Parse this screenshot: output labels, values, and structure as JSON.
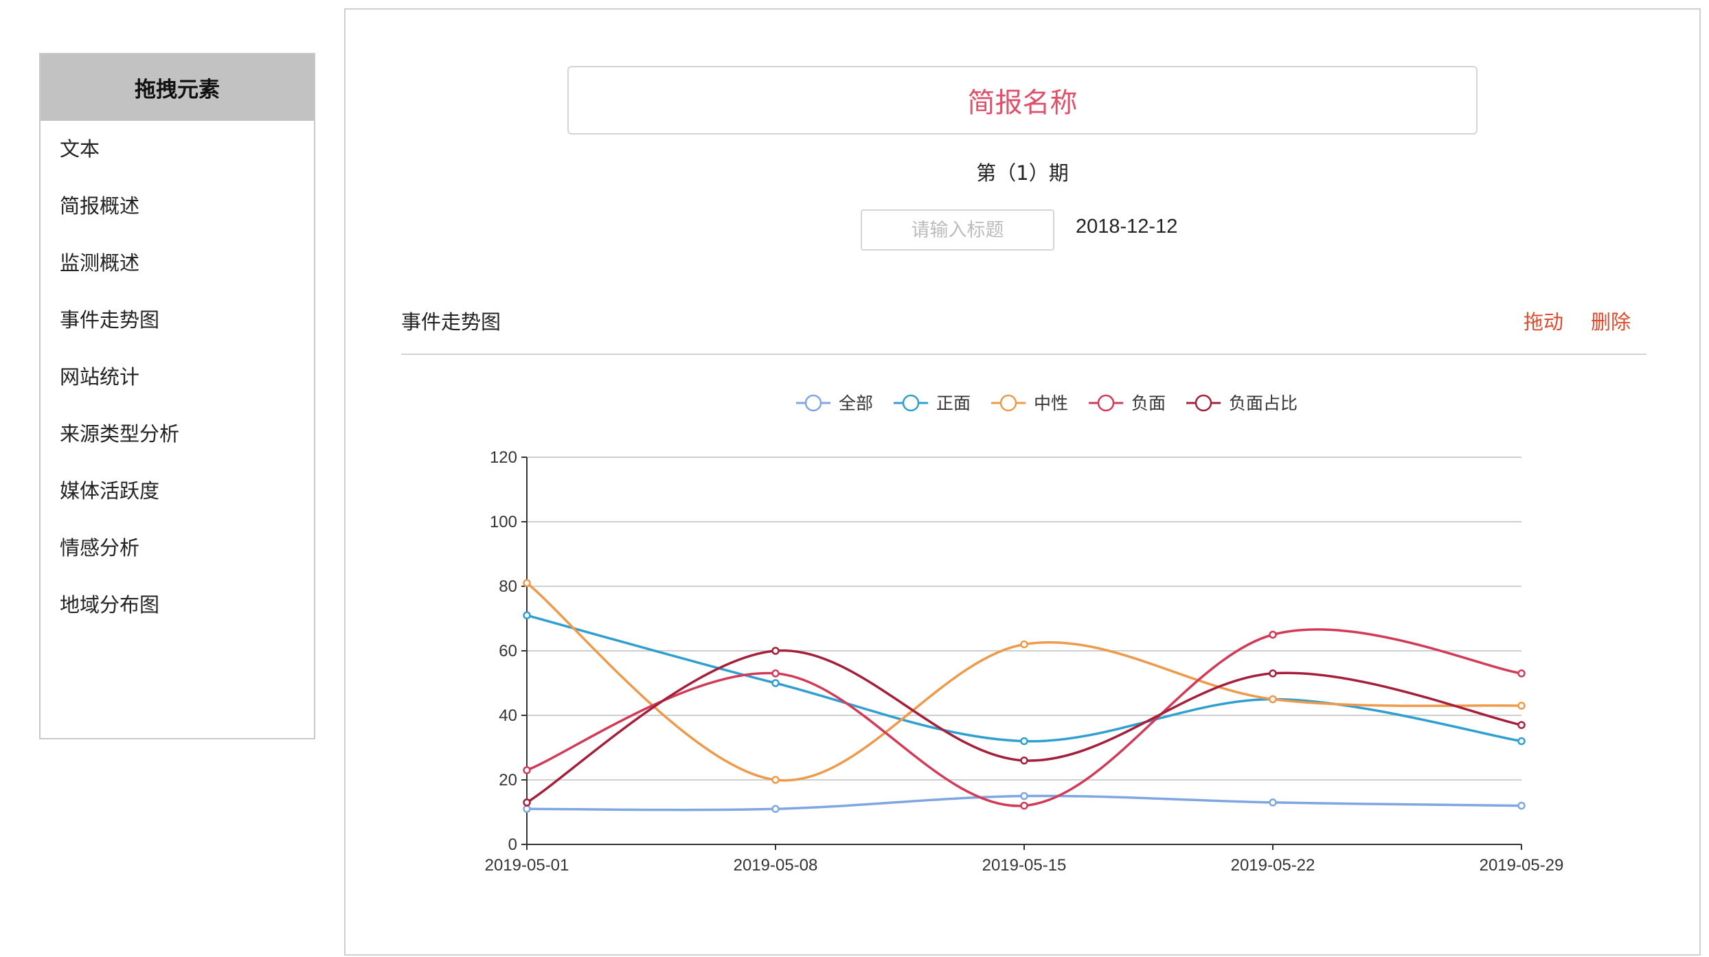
{
  "sidebar": {
    "title": "拖拽元素",
    "items": [
      {
        "label": "文本"
      },
      {
        "label": "简报概述"
      },
      {
        "label": "监测概述"
      },
      {
        "label": "事件走势图"
      },
      {
        "label": "网站统计"
      },
      {
        "label": "来源类型分析"
      },
      {
        "label": "媒体活跃度"
      },
      {
        "label": "情感分析"
      },
      {
        "label": "地域分布图"
      }
    ]
  },
  "report": {
    "title": "简报名称",
    "issue": "第（1）期",
    "subtitle_placeholder": "请输入标题",
    "subtitle_value": "",
    "date": "2018-12-12"
  },
  "section": {
    "title": "事件走势图",
    "drag_label": "拖动",
    "delete_label": "删除"
  },
  "colors": {
    "title_accent": "#e0506b",
    "action": "#e04a2a"
  },
  "chart_data": {
    "type": "line",
    "smooth": true,
    "x": [
      "2019-05-01",
      "2019-05-08",
      "2019-05-15",
      "2019-05-22",
      "2019-05-29"
    ],
    "ylim": [
      0,
      120
    ],
    "yticks": [
      0,
      20,
      40,
      60,
      80,
      100,
      120
    ],
    "grid": true,
    "legend_position": "top-center",
    "series": [
      {
        "name": "全部",
        "color": "#7ea6e0",
        "values": [
          11,
          11,
          15,
          13,
          12
        ]
      },
      {
        "name": "正面",
        "color": "#2f9fd1",
        "values": [
          71,
          50,
          32,
          45,
          32
        ]
      },
      {
        "name": "中性",
        "color": "#ee9a4a",
        "values": [
          81,
          20,
          62,
          45,
          43
        ]
      },
      {
        "name": "负面",
        "color": "#d23a57",
        "values": [
          23,
          53,
          12,
          65,
          53
        ]
      },
      {
        "name": "负面占比",
        "color": "#a51f3a",
        "values": [
          13,
          60,
          26,
          53,
          37
        ]
      }
    ]
  }
}
